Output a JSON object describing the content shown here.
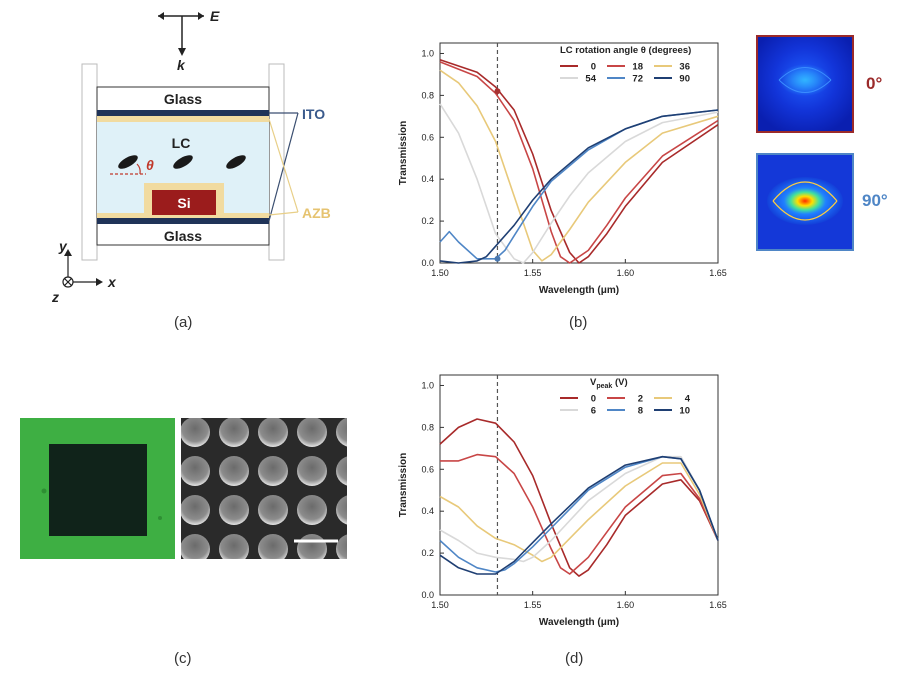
{
  "panel_a": {
    "caption": "(a)",
    "labels": {
      "e_field": "E",
      "k_vector": "k",
      "glass_top": "Glass",
      "glass_bottom": "Glass",
      "lc": "LC",
      "theta": "θ",
      "si": "Si",
      "ito": "ITO",
      "azb": "AZB",
      "axis_y": "y",
      "axis_x": "x",
      "axis_z": "z"
    }
  },
  "panel_b": {
    "caption": "(b)",
    "inset_labels": [
      "0°",
      "90°"
    ],
    "colors": {
      "inset_0": "#9b2a2a",
      "inset_90": "#3d6ea8"
    }
  },
  "panel_c": {
    "caption": "(c)"
  },
  "panel_d": {
    "caption": "(d)"
  },
  "chart_data": [
    {
      "type": "line",
      "panel": "b",
      "xlabel": "Wavelength (μm)",
      "ylabel": "Transmission",
      "xlim": [
        1.5,
        1.65
      ],
      "ylim": [
        0.0,
        1.05
      ],
      "xticks": [
        "1.50",
        "1.55",
        "1.60",
        "1.65"
      ],
      "yticks": [
        "0.0",
        "0.2",
        "0.4",
        "0.6",
        "0.8",
        "1.0"
      ],
      "legend_title": "LC rotation angle θ (degrees)",
      "legend_position": "top-right",
      "reference_line_x": 1.531,
      "markers": [
        {
          "x": 1.531,
          "y": 0.82,
          "color": "#a83232"
        },
        {
          "x": 1.531,
          "y": 0.02,
          "color": "#4a78b0"
        }
      ],
      "grid": false,
      "series": [
        {
          "name": "0",
          "color": "#a82a2a",
          "x": [
            1.5,
            1.52,
            1.53,
            1.54,
            1.55,
            1.56,
            1.57,
            1.575,
            1.58,
            1.59,
            1.6,
            1.62,
            1.65
          ],
          "y": [
            0.97,
            0.91,
            0.84,
            0.73,
            0.52,
            0.25,
            0.05,
            0.0,
            0.03,
            0.14,
            0.27,
            0.48,
            0.66
          ]
        },
        {
          "name": "18",
          "color": "#c84646",
          "x": [
            1.5,
            1.52,
            1.53,
            1.54,
            1.55,
            1.56,
            1.565,
            1.57,
            1.58,
            1.59,
            1.6,
            1.62,
            1.65
          ],
          "y": [
            0.96,
            0.89,
            0.81,
            0.68,
            0.45,
            0.15,
            0.03,
            0.0,
            0.06,
            0.18,
            0.31,
            0.51,
            0.68
          ]
        },
        {
          "name": "36",
          "color": "#e8c97a",
          "x": [
            1.5,
            1.51,
            1.52,
            1.53,
            1.54,
            1.55,
            1.555,
            1.56,
            1.57,
            1.58,
            1.6,
            1.62,
            1.65
          ],
          "y": [
            0.92,
            0.86,
            0.75,
            0.58,
            0.32,
            0.06,
            0.01,
            0.04,
            0.16,
            0.29,
            0.48,
            0.62,
            0.7
          ]
        },
        {
          "name": "54",
          "color": "#d9d9d9",
          "x": [
            1.5,
            1.51,
            1.52,
            1.53,
            1.54,
            1.545,
            1.55,
            1.56,
            1.57,
            1.58,
            1.6,
            1.62,
            1.65
          ],
          "y": [
            0.76,
            0.62,
            0.4,
            0.14,
            0.02,
            0.0,
            0.05,
            0.19,
            0.32,
            0.43,
            0.58,
            0.67,
            0.72
          ]
        },
        {
          "name": "72",
          "color": "#4f86c6",
          "x": [
            1.5,
            1.505,
            1.51,
            1.52,
            1.53,
            1.535,
            1.54,
            1.55,
            1.56,
            1.58,
            1.6,
            1.62,
            1.65
          ],
          "y": [
            0.1,
            0.15,
            0.1,
            0.02,
            0.02,
            0.06,
            0.13,
            0.27,
            0.39,
            0.54,
            0.64,
            0.7,
            0.73
          ]
        },
        {
          "name": "90",
          "color": "#1f3f73",
          "x": [
            1.5,
            1.51,
            1.52,
            1.525,
            1.53,
            1.54,
            1.55,
            1.56,
            1.58,
            1.6,
            1.62,
            1.65
          ],
          "y": [
            0.01,
            0.0,
            0.01,
            0.03,
            0.08,
            0.18,
            0.3,
            0.4,
            0.55,
            0.64,
            0.7,
            0.73
          ]
        }
      ]
    },
    {
      "type": "line",
      "panel": "d",
      "xlabel": "Wavelength (μm)",
      "ylabel": "Transmission",
      "xlim": [
        1.5,
        1.65
      ],
      "ylim": [
        0.0,
        1.05
      ],
      "xticks": [
        "1.50",
        "1.55",
        "1.60",
        "1.65"
      ],
      "yticks": [
        "0.0",
        "0.2",
        "0.4",
        "0.6",
        "0.8",
        "1.0"
      ],
      "legend_title": "V",
      "legend_title_sub": "peak",
      "legend_title_unit": " (V)",
      "legend_position": "top-right",
      "reference_line_x": 1.531,
      "grid": false,
      "series": [
        {
          "name": "0",
          "color": "#a82a2a",
          "x": [
            1.5,
            1.51,
            1.52,
            1.53,
            1.54,
            1.55,
            1.56,
            1.57,
            1.575,
            1.58,
            1.59,
            1.6,
            1.62,
            1.63,
            1.64,
            1.65
          ],
          "y": [
            0.72,
            0.8,
            0.84,
            0.82,
            0.73,
            0.57,
            0.34,
            0.13,
            0.09,
            0.12,
            0.24,
            0.38,
            0.53,
            0.55,
            0.45,
            0.26
          ]
        },
        {
          "name": "2",
          "color": "#c84646",
          "x": [
            1.5,
            1.51,
            1.52,
            1.53,
            1.54,
            1.55,
            1.56,
            1.565,
            1.57,
            1.58,
            1.6,
            1.62,
            1.63,
            1.64,
            1.65
          ],
          "y": [
            0.64,
            0.64,
            0.67,
            0.66,
            0.58,
            0.42,
            0.22,
            0.13,
            0.1,
            0.18,
            0.42,
            0.57,
            0.58,
            0.46,
            0.26
          ]
        },
        {
          "name": "4",
          "color": "#e8c97a",
          "x": [
            1.5,
            1.51,
            1.52,
            1.53,
            1.54,
            1.55,
            1.555,
            1.56,
            1.58,
            1.6,
            1.62,
            1.63,
            1.64,
            1.65
          ],
          "y": [
            0.47,
            0.42,
            0.33,
            0.27,
            0.24,
            0.19,
            0.16,
            0.18,
            0.36,
            0.52,
            0.63,
            0.63,
            0.48,
            0.26
          ]
        },
        {
          "name": "6",
          "color": "#d9d9d9",
          "x": [
            1.5,
            1.51,
            1.52,
            1.53,
            1.54,
            1.545,
            1.55,
            1.56,
            1.58,
            1.6,
            1.62,
            1.63,
            1.64,
            1.65
          ],
          "y": [
            0.31,
            0.26,
            0.2,
            0.18,
            0.17,
            0.16,
            0.18,
            0.26,
            0.45,
            0.58,
            0.66,
            0.66,
            0.5,
            0.26
          ]
        },
        {
          "name": "8",
          "color": "#4f86c6",
          "x": [
            1.5,
            1.51,
            1.52,
            1.53,
            1.535,
            1.54,
            1.55,
            1.56,
            1.58,
            1.6,
            1.62,
            1.63,
            1.64,
            1.65
          ],
          "y": [
            0.26,
            0.18,
            0.13,
            0.11,
            0.12,
            0.15,
            0.23,
            0.32,
            0.5,
            0.61,
            0.66,
            0.65,
            0.5,
            0.26
          ]
        },
        {
          "name": "10",
          "color": "#1f3f73",
          "x": [
            1.5,
            1.51,
            1.52,
            1.53,
            1.54,
            1.55,
            1.56,
            1.58,
            1.6,
            1.62,
            1.63,
            1.64,
            1.65
          ],
          "y": [
            0.19,
            0.13,
            0.1,
            0.1,
            0.16,
            0.25,
            0.34,
            0.51,
            0.62,
            0.66,
            0.65,
            0.5,
            0.26
          ]
        }
      ]
    }
  ]
}
